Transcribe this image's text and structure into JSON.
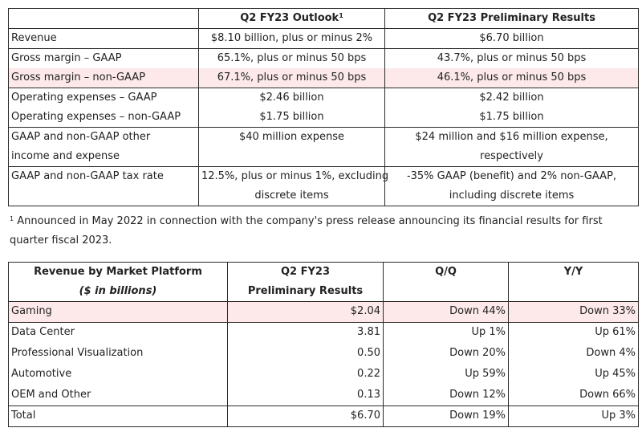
{
  "outlook": {
    "header_outlook": "Q2 FY23 Outlook",
    "header_outlook_sup": "1",
    "header_prelim": "Q2 FY23 Preliminary Results",
    "rows": [
      {
        "label": "Revenue",
        "outlook": "$8.10 billion, plus or minus 2%",
        "prelim": "$6.70 billion"
      },
      {
        "label": "Gross margin – GAAP",
        "outlook": "65.1%, plus or minus 50 bps",
        "prelim": "43.7%, plus or minus 50 bps"
      },
      {
        "label": "Gross margin – non-GAAP",
        "outlook": "67.1%, plus or minus 50 bps",
        "prelim": "46.1%, plus or minus 50 bps"
      },
      {
        "label": "Operating expenses – GAAP",
        "outlook": "$2.46 billion",
        "prelim": "$2.42 billion"
      },
      {
        "label": "Operating expenses – non-GAAP",
        "outlook": "$1.75 billion",
        "prelim": "$1.75 billion"
      },
      {
        "label_line1": "GAAP and non-GAAP other",
        "label_line2": "income and expense",
        "outlook": "$40 million expense",
        "prelim_line1": "$24 million and $16 million expense,",
        "prelim_line2": "respectively"
      },
      {
        "label": "GAAP and non-GAAP tax rate",
        "outlook_line1": "12.5%, plus or minus 1%, excluding",
        "outlook_line2": "discrete items",
        "prelim_line1": "-35% GAAP (benefit) and 2% non-GAAP,",
        "prelim_line2": "including discrete items"
      }
    ]
  },
  "footnote": {
    "marker": "1",
    "text": "Announced in May 2022 in connection with the company's press release announcing its financial results for first quarter fiscal 2023."
  },
  "platform": {
    "header_col1_line1": "Revenue by Market Platform",
    "header_col1_line2": "($ in billions)",
    "header_col2_line1": "Q2 FY23",
    "header_col2_line2": "Preliminary Results",
    "header_col3": "Q/Q",
    "header_col4": "Y/Y",
    "rows": [
      {
        "label": "Gaming",
        "value": "$2.04",
        "qq": "Down 44%",
        "yy": "Down 33%"
      },
      {
        "label": "Data Center",
        "value": "3.81",
        "qq": "Up 1%",
        "yy": "Up 61%"
      },
      {
        "label": "Professional Visualization",
        "value": "0.50",
        "qq": "Down 20%",
        "yy": "Down 4%"
      },
      {
        "label": "Automotive",
        "value": "0.22",
        "qq": "Up 59%",
        "yy": "Up 45%"
      },
      {
        "label": "OEM and Other",
        "value": "0.13",
        "qq": "Down 12%",
        "yy": "Down 66%"
      },
      {
        "label": "Total",
        "value": "$6.70",
        "qq": "Down 19%",
        "yy": "Up 3%"
      }
    ]
  },
  "colors": {
    "highlight": "#fde9ea",
    "border": "#2b2b2b"
  }
}
